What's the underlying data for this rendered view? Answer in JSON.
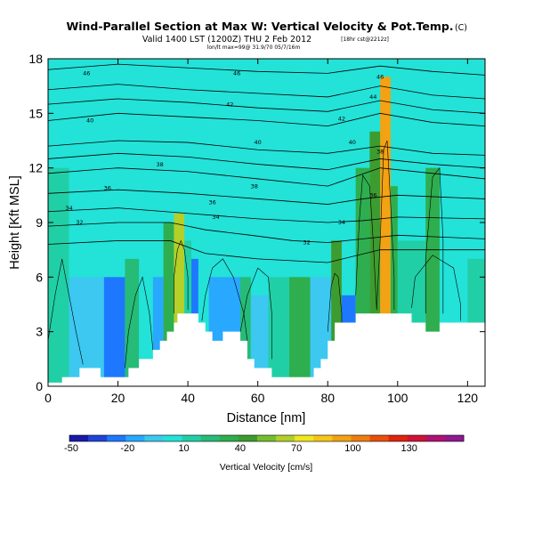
{
  "chart_data": {
    "type": "heatmap",
    "title": "Wind-Parallel Section at Max W: Vertical Velocity & Pot.Temp.",
    "title_suffix": "(C)",
    "subtitle_main": "Valid 1400 LST (1200Z) THU 2 Feb 2012",
    "subtitle_small": "[18hr cst@2212z]",
    "subtitle_tiny": "lon/lt max=99@ 31.9/70 05/7/16m",
    "xlabel": "Distance [nm]",
    "ylabel": "Height [Kft MSL]",
    "xlim": [
      0,
      125
    ],
    "ylim": [
      0,
      18
    ],
    "x_ticks": [
      0,
      20,
      40,
      60,
      80,
      100,
      120
    ],
    "y_ticks": [
      0,
      3,
      6,
      9,
      12,
      15,
      18
    ],
    "grid": false,
    "colorbar": {
      "label": "Vertical Velocity [cm/s]",
      "tick_labels": [
        "-50",
        "-20",
        "10",
        "40",
        "70",
        "100",
        "130"
      ],
      "tick_bins": [
        0,
        3,
        6,
        9,
        12,
        15,
        18
      ],
      "colors": [
        "#1a1aa8",
        "#1e44d8",
        "#1e78ff",
        "#28a8ff",
        "#3cc8f0",
        "#23e2d8",
        "#21cfa6",
        "#27bb78",
        "#2fae4f",
        "#3d9c2f",
        "#75bd2d",
        "#b3cf28",
        "#f0e61e",
        "#f6c518",
        "#f2a212",
        "#ee7d10",
        "#e8500c",
        "#e0240c",
        "#cf1234",
        "#b01272",
        "#901890"
      ]
    },
    "velocity_bands": [
      {
        "x": [
          0,
          6
        ],
        "ymax": 12,
        "value": 10
      },
      {
        "x": [
          6,
          16
        ],
        "ymax": 6,
        "value": -10
      },
      {
        "x": [
          16,
          22
        ],
        "ymax": 6,
        "value": -25
      },
      {
        "x": [
          22,
          26
        ],
        "ymax": 7,
        "value": 20
      },
      {
        "x": [
          26,
          30
        ],
        "ymax": 6,
        "value": 0
      },
      {
        "x": [
          30,
          33
        ],
        "ymax": 6,
        "value": -20
      },
      {
        "x": [
          33,
          36
        ],
        "ymax": 9,
        "value": 30
      },
      {
        "x": [
          36,
          39
        ],
        "ymax": 9.5,
        "value": 65
      },
      {
        "x": [
          39,
          41
        ],
        "ymax": 8,
        "value": 15
      },
      {
        "x": [
          41,
          43
        ],
        "ymax": 7,
        "value": -30
      },
      {
        "x": [
          43,
          46
        ],
        "ymax": 6,
        "value": 0
      },
      {
        "x": [
          46,
          55
        ],
        "ymax": 6,
        "value": -15
      },
      {
        "x": [
          55,
          58
        ],
        "ymax": 6,
        "value": 20
      },
      {
        "x": [
          58,
          63
        ],
        "ymax": 5,
        "value": -10
      },
      {
        "x": [
          63,
          69
        ],
        "ymax": 6,
        "value": 10
      },
      {
        "x": [
          69,
          75
        ],
        "ymax": 6,
        "value": 30
      },
      {
        "x": [
          75,
          81
        ],
        "ymax": 6,
        "value": -10
      },
      {
        "x": [
          81,
          84
        ],
        "ymax": 8,
        "value": 45
      },
      {
        "x": [
          84,
          88
        ],
        "ymax": 5,
        "value": -25
      },
      {
        "x": [
          88,
          92
        ],
        "ymax": 12,
        "value": 30
      },
      {
        "x": [
          92,
          95
        ],
        "ymax": 14,
        "value": 45
      },
      {
        "x": [
          95,
          98
        ],
        "ymax": 17,
        "value": 95
      },
      {
        "x": [
          98,
          100
        ],
        "ymax": 11,
        "value": 30
      },
      {
        "x": [
          100,
          108
        ],
        "ymax": 8,
        "value": 15
      },
      {
        "x": [
          108,
          112
        ],
        "ymax": 12,
        "value": 30
      },
      {
        "x": [
          112,
          120
        ],
        "ymax": 7,
        "value": 5
      },
      {
        "x": [
          120,
          125
        ],
        "ymax": 7,
        "value": 15
      }
    ],
    "terrain": [
      [
        0,
        0.2
      ],
      [
        4,
        0.2
      ],
      [
        4,
        0.5
      ],
      [
        9,
        0.5
      ],
      [
        9,
        1.0
      ],
      [
        15,
        1.0
      ],
      [
        15,
        0.5
      ],
      [
        23,
        0.5
      ],
      [
        23,
        1.0
      ],
      [
        26,
        1.0
      ],
      [
        26,
        1.5
      ],
      [
        30,
        1.5
      ],
      [
        30,
        2.0
      ],
      [
        32,
        2.0
      ],
      [
        32,
        2.5
      ],
      [
        34,
        2.5
      ],
      [
        34,
        3.0
      ],
      [
        36,
        3.0
      ],
      [
        36,
        3.5
      ],
      [
        37,
        3.5
      ],
      [
        37,
        4.0
      ],
      [
        43,
        4.0
      ],
      [
        43,
        3.5
      ],
      [
        45,
        3.5
      ],
      [
        45,
        3.0
      ],
      [
        47,
        3.0
      ],
      [
        47,
        2.5
      ],
      [
        50,
        2.5
      ],
      [
        50,
        3.0
      ],
      [
        55,
        3.0
      ],
      [
        55,
        2.5
      ],
      [
        57,
        2.5
      ],
      [
        57,
        1.5
      ],
      [
        59,
        1.5
      ],
      [
        59,
        1.0
      ],
      [
        64,
        1.0
      ],
      [
        64,
        0.5
      ],
      [
        76,
        0.5
      ],
      [
        76,
        1.0
      ],
      [
        78,
        1.0
      ],
      [
        78,
        1.5
      ],
      [
        80,
        1.5
      ],
      [
        80,
        2.5
      ],
      [
        82,
        2.5
      ],
      [
        82,
        3.5
      ],
      [
        88,
        3.5
      ],
      [
        88,
        4.0
      ],
      [
        104,
        4.0
      ],
      [
        104,
        3.5
      ],
      [
        108,
        3.5
      ],
      [
        108,
        3.0
      ],
      [
        112,
        3.0
      ],
      [
        112,
        3.5
      ],
      [
        125,
        3.5
      ]
    ],
    "theta_contours": [
      {
        "label": "32",
        "points": [
          [
            0,
            8.8
          ],
          [
            20,
            9.0
          ],
          [
            35,
            9.0
          ],
          [
            45,
            8.6
          ],
          [
            58,
            8.3
          ],
          [
            70,
            8.0
          ],
          [
            80,
            7.9
          ],
          [
            90,
            8.1
          ],
          [
            100,
            8.3
          ],
          [
            125,
            8.1
          ]
        ],
        "labels": [
          [
            9,
            9.0
          ],
          [
            74,
            7.9
          ]
        ]
      },
      {
        "label": "34",
        "points": [
          [
            0,
            9.6
          ],
          [
            20,
            9.8
          ],
          [
            40,
            9.5
          ],
          [
            60,
            9.2
          ],
          [
            80,
            9.0
          ],
          [
            90,
            9.1
          ],
          [
            100,
            9.3
          ],
          [
            125,
            9.2
          ]
        ],
        "labels": [
          [
            6,
            9.8
          ],
          [
            48,
            9.3
          ],
          [
            84,
            9.0
          ]
        ]
      },
      {
        "label": "36",
        "points": [
          [
            0,
            10.6
          ],
          [
            20,
            10.8
          ],
          [
            40,
            10.6
          ],
          [
            60,
            10.3
          ],
          [
            80,
            10.0
          ],
          [
            90,
            10.3
          ],
          [
            100,
            10.5
          ],
          [
            125,
            10.3
          ]
        ],
        "labels": [
          [
            17,
            10.9
          ],
          [
            47,
            10.1
          ],
          [
            93,
            10.5
          ]
        ]
      },
      {
        "label": "38",
        "points": [
          [
            0,
            11.7
          ],
          [
            20,
            12.0
          ],
          [
            40,
            11.8
          ],
          [
            60,
            11.4
          ],
          [
            80,
            11.0
          ],
          [
            95,
            12.0
          ],
          [
            110,
            11.7
          ],
          [
            125,
            11.4
          ]
        ],
        "labels": [
          [
            32,
            12.2
          ],
          [
            59,
            11.0
          ],
          [
            95,
            12.9
          ]
        ]
      },
      {
        "label": "40",
        "points": [
          [
            0,
            13.2
          ],
          [
            20,
            13.5
          ],
          [
            40,
            13.4
          ],
          [
            60,
            13.0
          ],
          [
            80,
            12.8
          ],
          [
            95,
            13.2
          ],
          [
            110,
            12.8
          ],
          [
            125,
            12.7
          ]
        ],
        "labels": [
          [
            12,
            14.6
          ],
          [
            60,
            13.4
          ],
          [
            87,
            13.4
          ]
        ]
      },
      {
        "label": "42",
        "points": [
          [
            0,
            14.6
          ],
          [
            20,
            15.0
          ],
          [
            40,
            14.8
          ],
          [
            60,
            14.6
          ],
          [
            80,
            14.3
          ],
          [
            95,
            15.0
          ],
          [
            110,
            14.5
          ],
          [
            125,
            14.3
          ]
        ],
        "labels": [
          [
            52,
            15.5
          ],
          [
            84,
            14.7
          ]
        ]
      },
      {
        "label": "44",
        "points": [
          [
            0,
            16.3
          ],
          [
            20,
            16.6
          ],
          [
            40,
            16.3
          ],
          [
            60,
            16.1
          ],
          [
            80,
            15.9
          ],
          [
            95,
            16.5
          ],
          [
            110,
            16.0
          ],
          [
            125,
            15.8
          ]
        ],
        "labels": [
          [
            93,
            15.9
          ]
        ]
      },
      {
        "label": "46",
        "points": [
          [
            0,
            17.4
          ],
          [
            20,
            17.7
          ],
          [
            40,
            17.5
          ],
          [
            60,
            17.3
          ],
          [
            80,
            17.2
          ],
          [
            95,
            17.6
          ],
          [
            110,
            17.3
          ],
          [
            125,
            17.1
          ]
        ],
        "labels": [
          [
            11,
            17.2
          ],
          [
            54,
            17.2
          ],
          [
            95,
            17.0
          ]
        ]
      },
      {
        "label": "",
        "points": [
          [
            0,
            12.5
          ],
          [
            20,
            12.8
          ],
          [
            40,
            12.6
          ],
          [
            60,
            12.2
          ],
          [
            80,
            11.9
          ],
          [
            95,
            12.5
          ],
          [
            110,
            12.2
          ],
          [
            125,
            12.0
          ]
        ],
        "labels": []
      },
      {
        "label": "",
        "points": [
          [
            0,
            15.5
          ],
          [
            20,
            15.8
          ],
          [
            40,
            15.6
          ],
          [
            60,
            15.3
          ],
          [
            80,
            15.1
          ],
          [
            95,
            15.7
          ],
          [
            110,
            15.2
          ],
          [
            125,
            15.0
          ]
        ],
        "labels": []
      },
      {
        "label": "",
        "points": [
          [
            0,
            7.8
          ],
          [
            20,
            8.0
          ],
          [
            35,
            8.0
          ],
          [
            45,
            7.3
          ],
          [
            60,
            7.0
          ],
          [
            80,
            6.8
          ],
          [
            95,
            7.5
          ],
          [
            125,
            7.5
          ]
        ],
        "labels": []
      }
    ],
    "w_contours": [
      [
        [
          0,
          2.5
        ],
        [
          2,
          5
        ],
        [
          4,
          7
        ],
        [
          6,
          5
        ],
        [
          8,
          3
        ],
        [
          10,
          1.2
        ]
      ],
      [
        [
          22,
          1
        ],
        [
          23,
          3
        ],
        [
          25,
          5
        ],
        [
          27,
          6
        ],
        [
          29,
          4
        ],
        [
          30,
          2
        ]
      ],
      [
        [
          36,
          4
        ],
        [
          36,
          6
        ],
        [
          37,
          7.5
        ],
        [
          38,
          8
        ],
        [
          39,
          7.5
        ],
        [
          40,
          6
        ],
        [
          40,
          4.2
        ]
      ],
      [
        [
          44,
          3.6
        ],
        [
          45,
          5
        ],
        [
          47,
          6.5
        ],
        [
          50,
          7
        ],
        [
          53,
          6
        ],
        [
          56,
          4
        ],
        [
          57,
          2.5
        ]
      ],
      [
        [
          55,
          3
        ],
        [
          57,
          5
        ],
        [
          60,
          6.5
        ],
        [
          63,
          6
        ],
        [
          64,
          4
        ],
        [
          64,
          1.5
        ]
      ],
      [
        [
          80,
          3
        ],
        [
          81,
          5.5
        ],
        [
          82,
          6.2
        ],
        [
          83,
          6
        ],
        [
          84,
          4
        ],
        [
          84,
          3.5
        ]
      ],
      [
        [
          88,
          5
        ],
        [
          89,
          9
        ],
        [
          90,
          11.6
        ],
        [
          92,
          11
        ],
        [
          93,
          8
        ],
        [
          94,
          4.2
        ]
      ],
      [
        [
          94,
          4.2
        ],
        [
          95,
          8
        ],
        [
          96,
          13
        ],
        [
          97,
          13.5
        ],
        [
          98,
          10
        ],
        [
          99,
          6
        ],
        [
          99,
          4.2
        ]
      ],
      [
        [
          104,
          4.3
        ],
        [
          105,
          6
        ],
        [
          110,
          7.2
        ],
        [
          116,
          6.5
        ],
        [
          118,
          4.5
        ],
        [
          118,
          3.6
        ]
      ],
      [
        [
          108,
          4
        ],
        [
          108,
          7
        ],
        [
          110,
          11.5
        ],
        [
          112,
          12
        ],
        [
          113,
          8
        ],
        [
          113,
          4
        ]
      ]
    ]
  }
}
